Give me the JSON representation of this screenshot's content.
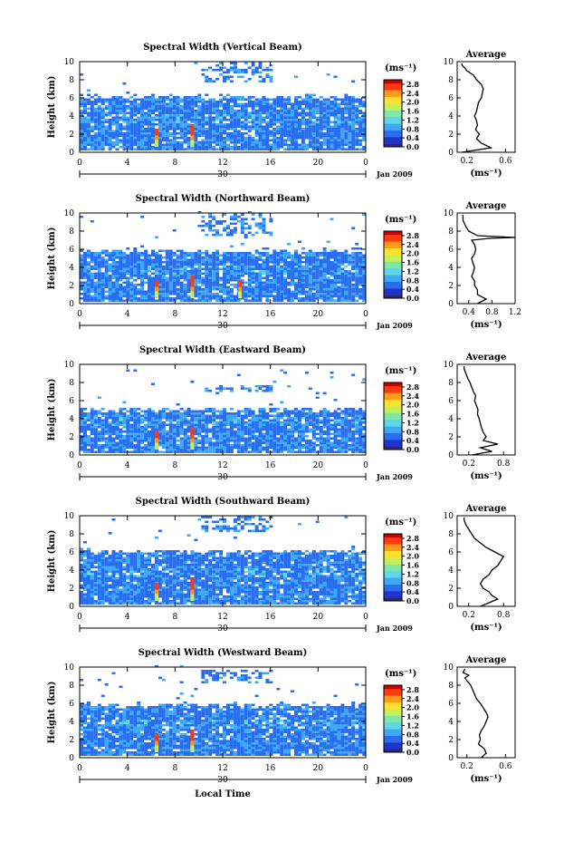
{
  "colors": {
    "background": "#ffffff",
    "axes": "#000000",
    "colorbar_stops": [
      "#2a2a66",
      "#2233cc",
      "#2a6ef0",
      "#3fa8f5",
      "#5fd7e8",
      "#7fe7a8",
      "#c8ef5a",
      "#ffe02a",
      "#ff9a1a",
      "#ff3a10",
      "#cc0000"
    ]
  },
  "chart_data": [
    {
      "type": "heatmap",
      "title": "Spectral Width (Vertical Beam)",
      "ylabel": "Height (km)",
      "xlabel": "",
      "x_ticks": [
        "0",
        "4",
        "8",
        "12",
        "16",
        "20",
        "0"
      ],
      "y_ticks": [
        "0",
        "2",
        "4",
        "6",
        "8",
        "10"
      ],
      "xlim": [
        0,
        24
      ],
      "ylim": [
        0,
        10
      ],
      "colorbar": {
        "unit": "(ms⁻¹)",
        "ticks": [
          "0.0",
          "0.4",
          "0.8",
          "1.2",
          "1.6",
          "2.0",
          "2.4",
          "2.8"
        ],
        "range": [
          0,
          3.0
        ]
      },
      "date_axis": {
        "day": "30",
        "month_year": "Jan 2009"
      },
      "signal_top_km": 6.3,
      "features": {
        "upper_patch_km": [
          7.6,
          9.8
        ],
        "strong_cores_hours": [
          6.3,
          9.3
        ]
      },
      "profile": {
        "title": "Average",
        "xlabel": "(ms⁻¹)",
        "x_ticks": [
          "0.2",
          "0.6"
        ],
        "xlim": [
          0.1,
          0.7
        ],
        "y_ticks": [
          "0",
          "2",
          "4",
          "6",
          "8",
          "10"
        ],
        "ylim": [
          0,
          10
        ],
        "x": [
          0.15,
          0.45,
          0.35,
          0.3,
          0.33,
          0.29,
          0.31,
          0.3,
          0.28,
          0.3,
          0.31,
          0.32,
          0.35,
          0.36,
          0.37,
          0.35,
          0.3,
          0.27,
          0.2,
          0.18,
          0.15,
          0.15
        ],
        "height": [
          0,
          0.5,
          1.0,
          1.5,
          2.0,
          2.5,
          3.0,
          3.5,
          4.0,
          4.5,
          5.0,
          5.5,
          6.0,
          6.5,
          7.0,
          7.5,
          8.0,
          8.5,
          9.0,
          9.3,
          9.6,
          9.8
        ]
      }
    },
    {
      "type": "heatmap",
      "title": "Spectral Width (Northward Beam)",
      "ylabel": "Height (km)",
      "xlabel": "",
      "x_ticks": [
        "0",
        "4",
        "8",
        "12",
        "16",
        "20",
        "0"
      ],
      "y_ticks": [
        "0",
        "2",
        "4",
        "6",
        "8",
        "10"
      ],
      "xlim": [
        0,
        24
      ],
      "ylim": [
        0,
        10
      ],
      "colorbar": {
        "unit": "(ms⁻¹)",
        "ticks": [
          "0.0",
          "0.4",
          "0.8",
          "1.2",
          "1.6",
          "2.0",
          "2.4",
          "2.8"
        ],
        "range": [
          0,
          3.0
        ]
      },
      "date_axis": {
        "day": "30",
        "month_year": "Jan 2009"
      },
      "signal_top_km": 6.0,
      "features": {
        "upper_patch_km": [
          7.4,
          9.8
        ],
        "strong_cores_hours": [
          6.3,
          9.3,
          13.3
        ]
      },
      "profile": {
        "title": "Average",
        "xlabel": "(ms⁻¹)",
        "x_ticks": [
          "0.4",
          "0.8",
          "1.2"
        ],
        "xlim": [
          0.2,
          1.2
        ],
        "y_ticks": [
          "0",
          "2",
          "4",
          "6",
          "8",
          "10"
        ],
        "ylim": [
          0,
          10
        ],
        "x": [
          0.55,
          0.7,
          0.55,
          0.55,
          0.5,
          0.5,
          0.45,
          0.48,
          0.5,
          0.47,
          0.45,
          0.5,
          0.52,
          0.5,
          0.45,
          0.75,
          1.2,
          0.55,
          0.4,
          0.35,
          0.3,
          0.3
        ],
        "height": [
          0,
          0.5,
          1.0,
          1.5,
          2.0,
          2.5,
          3.0,
          3.5,
          4.0,
          4.5,
          5.0,
          5.5,
          6.0,
          6.5,
          7.0,
          7.2,
          7.3,
          7.5,
          8.0,
          8.5,
          9.2,
          9.8
        ]
      }
    },
    {
      "type": "heatmap",
      "title": "Spectral Width (Eastward Beam)",
      "ylabel": "Height (km)",
      "xlabel": "",
      "x_ticks": [
        "0",
        "4",
        "8",
        "12",
        "16",
        "20",
        "0"
      ],
      "y_ticks": [
        "0",
        "2",
        "4",
        "6",
        "8",
        "10"
      ],
      "xlim": [
        0,
        24
      ],
      "ylim": [
        0,
        10
      ],
      "colorbar": {
        "unit": "(ms⁻¹)",
        "ticks": [
          "0.0",
          "0.4",
          "0.8",
          "1.2",
          "1.6",
          "2.0",
          "2.4",
          "2.8"
        ],
        "range": [
          0,
          3.0
        ]
      },
      "date_axis": {
        "day": "30",
        "month_year": "Jan 2009"
      },
      "signal_top_km": 5.2,
      "features": {
        "upper_patch_km": [
          6.8,
          7.6
        ],
        "strong_cores_hours": [
          6.3,
          9.3
        ]
      },
      "profile": {
        "title": "Average",
        "xlabel": "(ms⁻¹)",
        "x_ticks": [
          "0.2",
          "0.8"
        ],
        "xlim": [
          0.0,
          1.0
        ],
        "y_ticks": [
          "0",
          "2",
          "4",
          "6",
          "8",
          "10"
        ],
        "ylim": [
          0,
          10
        ],
        "x": [
          0.25,
          0.6,
          0.4,
          0.7,
          0.45,
          0.5,
          0.45,
          0.42,
          0.4,
          0.38,
          0.35,
          0.36,
          0.33,
          0.3,
          0.32,
          0.28,
          0.25,
          0.22,
          0.18,
          0.15,
          0.12,
          0.12
        ],
        "height": [
          0,
          0.4,
          0.8,
          1.2,
          1.6,
          2.0,
          2.5,
          3.0,
          3.5,
          4.0,
          4.5,
          5.0,
          5.5,
          6.0,
          6.5,
          7.0,
          7.5,
          8.0,
          8.5,
          9.0,
          9.5,
          9.8
        ]
      }
    },
    {
      "type": "heatmap",
      "title": "Spectral Width (Southward Beam)",
      "ylabel": "Height (km)",
      "xlabel": "",
      "x_ticks": [
        "0",
        "4",
        "8",
        "12",
        "16",
        "20",
        "0"
      ],
      "y_ticks": [
        "0",
        "2",
        "4",
        "6",
        "8",
        "10"
      ],
      "xlim": [
        0,
        24
      ],
      "ylim": [
        0,
        10
      ],
      "colorbar": {
        "unit": "(ms⁻¹)",
        "ticks": [
          "0.0",
          "0.4",
          "0.8",
          "1.2",
          "1.6",
          "2.0",
          "2.4",
          "2.8"
        ],
        "range": [
          0,
          3.0
        ]
      },
      "date_axis": {
        "day": "30",
        "month_year": "Jan 2009"
      },
      "signal_top_km": 6.2,
      "features": {
        "upper_patch_km": [
          8.0,
          9.8
        ],
        "strong_cores_hours": [
          6.3,
          9.3
        ]
      },
      "profile": {
        "title": "Average",
        "xlabel": "(ms⁻¹)",
        "x_ticks": [
          "0.2",
          "0.8"
        ],
        "xlim": [
          0.0,
          1.0
        ],
        "y_ticks": [
          "0",
          "2",
          "4",
          "6",
          "8",
          "10"
        ],
        "ylim": [
          0,
          10
        ],
        "x": [
          0.4,
          0.55,
          0.7,
          0.6,
          0.55,
          0.45,
          0.4,
          0.45,
          0.55,
          0.6,
          0.7,
          0.75,
          0.8,
          0.65,
          0.5,
          0.4,
          0.3,
          0.25,
          0.2,
          0.15,
          0.12,
          0.12
        ],
        "height": [
          0,
          0.4,
          0.8,
          1.2,
          1.6,
          2.0,
          2.5,
          3.0,
          3.5,
          4.0,
          4.5,
          5.0,
          5.5,
          6.0,
          6.5,
          7.0,
          7.5,
          8.0,
          8.5,
          9.0,
          9.5,
          9.8
        ]
      }
    },
    {
      "type": "heatmap",
      "title": "Spectral Width (Westward Beam)",
      "ylabel": "Height (km)",
      "xlabel": "Local Time",
      "x_ticks": [
        "0",
        "4",
        "8",
        "12",
        "16",
        "20",
        "0"
      ],
      "y_ticks": [
        "0",
        "2",
        "4",
        "6",
        "8",
        "10"
      ],
      "xlim": [
        0,
        24
      ],
      "ylim": [
        0,
        10
      ],
      "colorbar": {
        "unit": "(ms⁻¹)",
        "ticks": [
          "0.0",
          "0.4",
          "0.8",
          "1.2",
          "1.6",
          "2.0",
          "2.4",
          "2.8"
        ],
        "range": [
          0,
          3.0
        ]
      },
      "date_axis": {
        "day": "30",
        "month_year": "Jan 2009"
      },
      "signal_top_km": 6.0,
      "features": {
        "upper_patch_km": [
          8.0,
          9.6
        ],
        "strong_cores_hours": [
          6.3,
          9.3
        ]
      },
      "profile": {
        "title": "Average",
        "xlabel": "(ms⁻¹)",
        "x_ticks": [
          "0.2",
          "0.6"
        ],
        "xlim": [
          0.1,
          0.7
        ],
        "y_ticks": [
          "0",
          "2",
          "4",
          "6",
          "8",
          "10"
        ],
        "ylim": [
          0,
          10
        ],
        "x": [
          0.35,
          0.4,
          0.38,
          0.32,
          0.34,
          0.33,
          0.35,
          0.38,
          0.4,
          0.42,
          0.4,
          0.37,
          0.34,
          0.3,
          0.28,
          0.26,
          0.24,
          0.2,
          0.18,
          0.22,
          0.16,
          0.18
        ],
        "height": [
          0,
          0.5,
          1.0,
          1.5,
          2.0,
          2.5,
          3.0,
          3.5,
          4.0,
          4.5,
          5.0,
          5.5,
          6.0,
          6.5,
          7.0,
          7.5,
          8.0,
          8.5,
          8.8,
          9.1,
          9.4,
          9.8
        ]
      }
    }
  ]
}
